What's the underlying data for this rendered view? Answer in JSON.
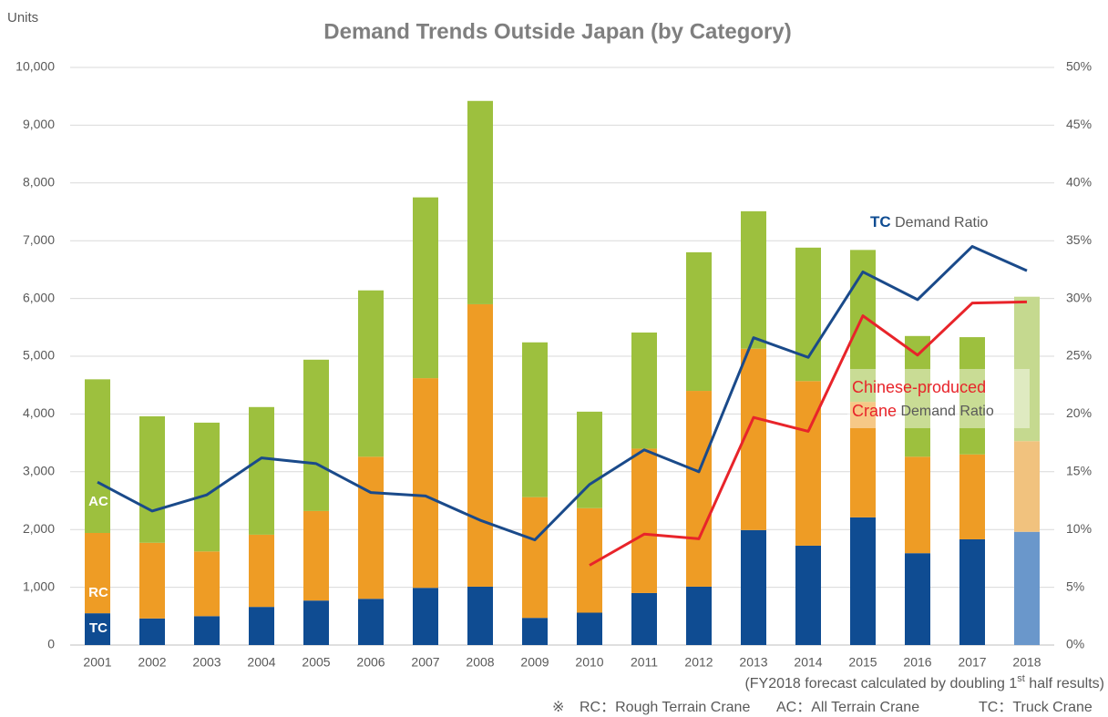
{
  "chart_data": {
    "type": "stacked-bar-line",
    "title": "Demand Trends Outside Japan (by Category)",
    "y_label": "Units",
    "categories": [
      "2001",
      "2002",
      "2003",
      "2004",
      "2005",
      "2006",
      "2007",
      "2008",
      "2009",
      "2010",
      "2011",
      "2012",
      "2013",
      "2014",
      "2015",
      "2016",
      "2017",
      "2018"
    ],
    "series": [
      {
        "name": "TC",
        "color": "#0f4c92",
        "forecast_color": "#6a97cb",
        "values": [
          550,
          460,
          500,
          660,
          770,
          800,
          990,
          1010,
          470,
          560,
          900,
          1010,
          1990,
          1720,
          2210,
          1590,
          1830,
          1960
        ]
      },
      {
        "name": "RC",
        "color": "#ee9c25",
        "forecast_color": "#f1c27e",
        "values": [
          1390,
          1310,
          1120,
          1250,
          1550,
          2460,
          3630,
          4890,
          2090,
          1810,
          2500,
          3390,
          3140,
          2850,
          2000,
          1670,
          1470,
          1570
        ]
      },
      {
        "name": "AC",
        "color": "#9dc03e",
        "forecast_color": "#c5d98f",
        "values": [
          2660,
          2190,
          2230,
          2210,
          2620,
          2880,
          3130,
          3520,
          2680,
          1670,
          2010,
          2400,
          2380,
          2310,
          2630,
          2090,
          2030,
          2500
        ]
      }
    ],
    "lines": [
      {
        "axis": "y2",
        "color": "#1a4a8a",
        "values": [
          14.1,
          11.6,
          13.0,
          16.2,
          15.7,
          13.2,
          12.9,
          10.8,
          9.1,
          13.9,
          16.9,
          15.0,
          26.6,
          24.9,
          32.3,
          29.9,
          34.5,
          32.4
        ]
      },
      {
        "axis": "y2",
        "color": "#e8242a",
        "values": [
          null,
          null,
          null,
          null,
          null,
          null,
          null,
          null,
          null,
          6.9,
          9.6,
          9.2,
          19.7,
          18.5,
          28.5,
          25.1,
          29.6,
          29.7
        ]
      }
    ],
    "annotations": [
      {
        "parts": [
          "TC",
          " Demand Ratio"
        ]
      },
      {
        "parts": [
          "Chinese-produced",
          "Crane",
          " Demand Ratio"
        ]
      }
    ],
    "ylim": [
      0,
      10000
    ],
    "yticks": [
      0,
      {
        "value": 1000,
        "label": "1,000"
      },
      {
        "value": 2000,
        "label": "2,000"
      },
      {
        "value": 3000,
        "label": "3,000"
      },
      {
        "value": 4000,
        "label": "4,000"
      },
      {
        "value": 5000,
        "label": "5,000"
      },
      {
        "value": 6000,
        "label": "6,000"
      },
      {
        "value": 7000,
        "label": "7,000"
      },
      {
        "value": 8000,
        "label": "8,000"
      },
      {
        "value": 9000,
        "label": "9,000"
      },
      {
        "value": 10000,
        "label": "10,000"
      }
    ],
    "y2lim": [
      0,
      50
    ],
    "y2ticks": [
      {
        "value": 0,
        "label": "0%"
      },
      {
        "value": 5,
        "label": "5%"
      },
      {
        "value": 10,
        "label": "10%"
      },
      {
        "value": 15,
        "label": "15%"
      },
      {
        "value": 20,
        "label": "20%"
      },
      {
        "value": 25,
        "label": "25%"
      },
      {
        "value": 30,
        "label": "30%"
      },
      {
        "value": 35,
        "label": "35%"
      },
      {
        "value": 40,
        "label": "40%"
      },
      {
        "value": 45,
        "label": "45%"
      },
      {
        "value": 50,
        "label": "50%"
      }
    ],
    "grid": true,
    "notes": {
      "forecast": [
        "(FY2018 forecast calculated by doubling 1",
        "st",
        " half results)"
      ],
      "legend_mark": "※",
      "legend": [
        "RC：Rough Terrain Crane",
        "AC：All Terrain Crane",
        "TC：Truck Crane"
      ]
    }
  }
}
